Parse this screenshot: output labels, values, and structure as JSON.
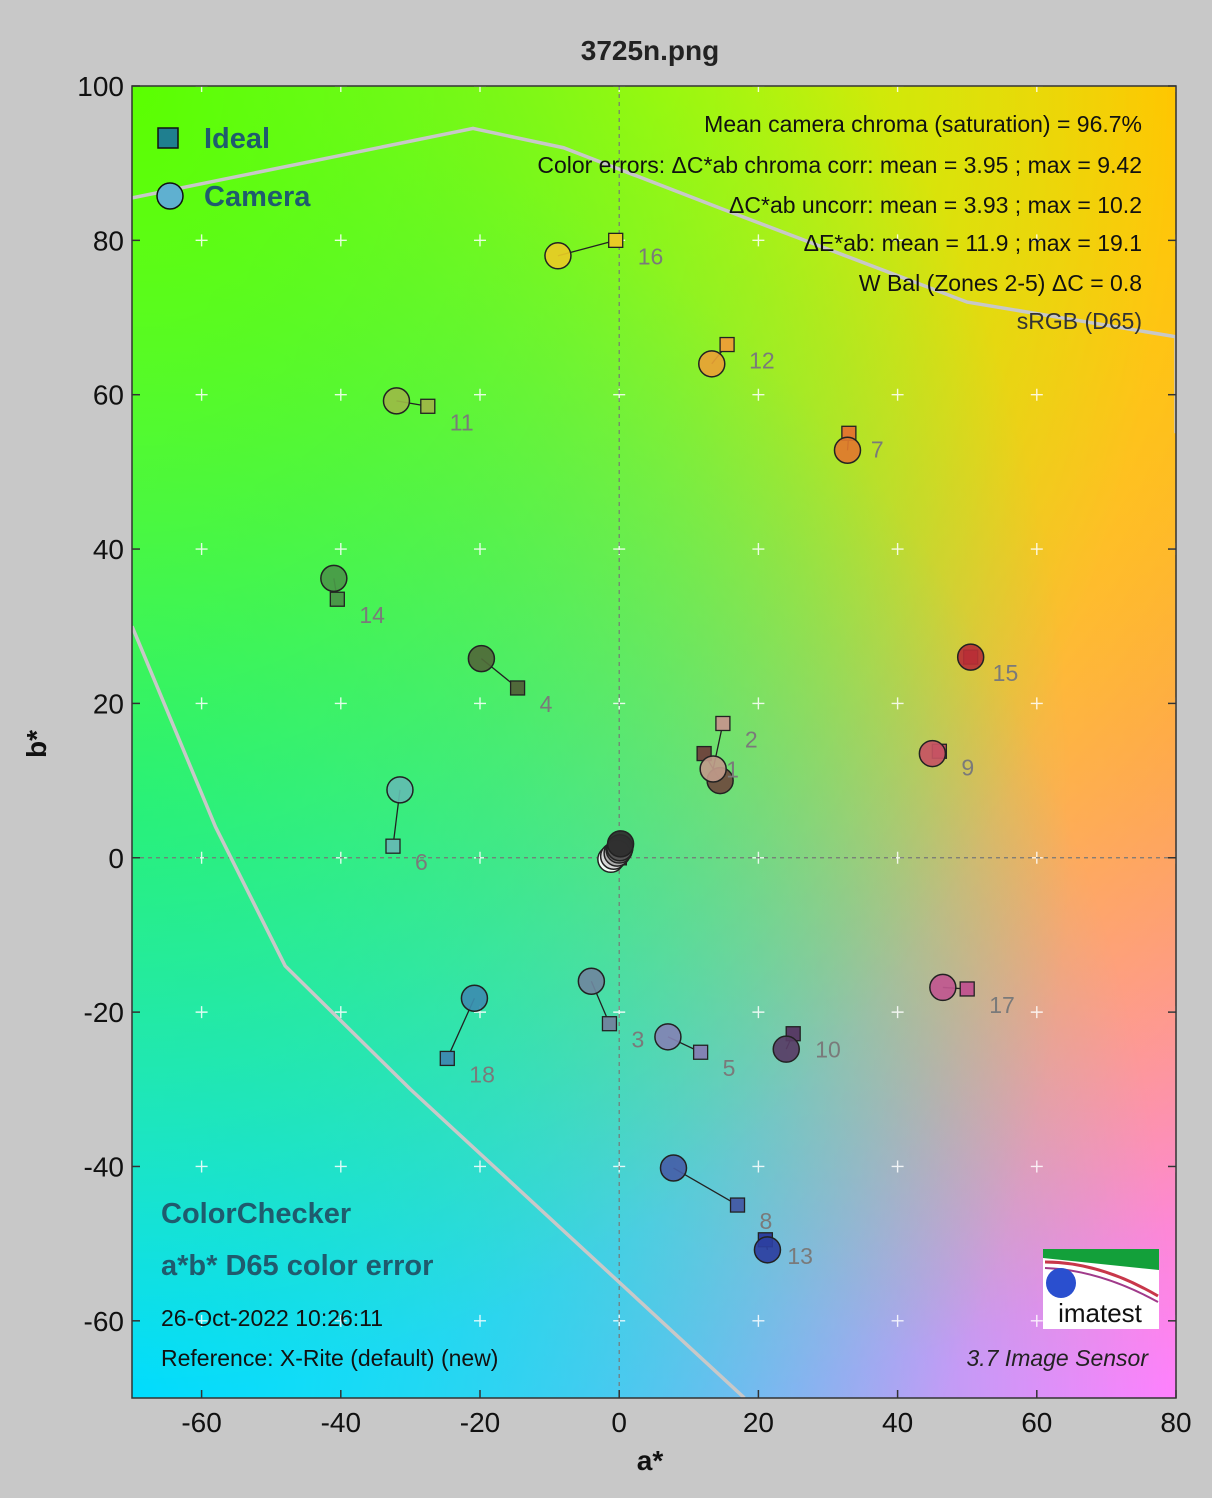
{
  "chart_data": {
    "type": "scatter",
    "title": "3725n.png",
    "xlabel": "a*",
    "ylabel": "b*",
    "xlim": [
      -70,
      80
    ],
    "ylim": [
      -70,
      100
    ],
    "xticks": [
      -60,
      -40,
      -20,
      0,
      20,
      40,
      60,
      80
    ],
    "yticks": [
      -60,
      -40,
      -20,
      0,
      20,
      40,
      60,
      80,
      100
    ],
    "grid": "crosses",
    "legend": {
      "placement": "top-left",
      "entries": [
        {
          "name": "Ideal",
          "marker": "square"
        },
        {
          "name": "Camera",
          "marker": "circle"
        }
      ]
    },
    "stats": [
      "Mean camera chroma (saturation) = 96.7%",
      "Color errors: ΔC*ab chroma corr:  mean = 3.95 ;  max = 9.42",
      "ΔC*ab uncorr:  mean = 3.93 ;  max = 10.2",
      "ΔE*ab:  mean = 11.9 ;  max = 19.1",
      "W Bal (Zones 2-5) ΔC = 0.8",
      "sRGB (D65)"
    ],
    "caption": {
      "line1": "ColorChecker",
      "line2": "a*b* D65 color error",
      "date": "26-Oct-2022 10:26:11",
      "reference": "Reference: X-Rite (default) (new)",
      "version": "3.7  Image Sensor"
    },
    "logo_text": "imatest",
    "gamut_boundary": [
      [
        -70,
        85.5
      ],
      [
        -21,
        94.5
      ],
      [
        -8,
        92
      ],
      [
        15,
        84
      ],
      [
        50,
        72
      ],
      [
        80,
        67.5
      ],
      [
        80,
        55
      ]
    ],
    "gamut_boundary_lower": [
      [
        -70,
        30
      ],
      [
        -58,
        4
      ],
      [
        -48,
        -14
      ],
      [
        -30,
        -30
      ],
      [
        0,
        -55
      ],
      [
        18,
        -70
      ]
    ],
    "patches": [
      {
        "id": "1",
        "ideal": [
          12.2,
          13.5
        ],
        "camera": [
          14.5,
          10.0
        ],
        "color": "#6e4a3e"
      },
      {
        "id": "2",
        "ideal": [
          14.9,
          17.4
        ],
        "camera": [
          13.5,
          11.5
        ],
        "color": "#c09a8a"
      },
      {
        "id": "3",
        "ideal": [
          -1.4,
          -21.5
        ],
        "camera": [
          -4.0,
          -16.0
        ],
        "color": "#6f879e"
      },
      {
        "id": "4",
        "ideal": [
          -14.6,
          22.0
        ],
        "camera": [
          -19.8,
          25.8
        ],
        "color": "#50693a"
      },
      {
        "id": "5",
        "ideal": [
          11.7,
          -25.2
        ],
        "camera": [
          7.0,
          -23.2
        ],
        "color": "#8283b4"
      },
      {
        "id": "6",
        "ideal": [
          -32.5,
          1.5
        ],
        "camera": [
          -31.5,
          8.8
        ],
        "color": "#62bdb0"
      },
      {
        "id": "7",
        "ideal": [
          33.0,
          55.0
        ],
        "camera": [
          32.8,
          52.8
        ],
        "color": "#e0782e"
      },
      {
        "id": "8",
        "ideal": [
          17.0,
          -45.0
        ],
        "camera": [
          7.8,
          -40.2
        ],
        "color": "#4560a8"
      },
      {
        "id": "9",
        "ideal": [
          46.0,
          13.8
        ],
        "camera": [
          45.0,
          13.5
        ],
        "color": "#c65463"
      },
      {
        "id": "10",
        "ideal": [
          25.0,
          -22.8
        ],
        "camera": [
          24.0,
          -24.8
        ],
        "color": "#583d66"
      },
      {
        "id": "11",
        "ideal": [
          -27.5,
          58.5
        ],
        "camera": [
          -32.0,
          59.2
        ],
        "color": "#9abb45"
      },
      {
        "id": "12",
        "ideal": [
          15.5,
          66.5
        ],
        "camera": [
          13.3,
          64.0
        ],
        "color": "#e9a235"
      },
      {
        "id": "13",
        "ideal": [
          21.0,
          -49.5
        ],
        "camera": [
          21.3,
          -50.8
        ],
        "color": "#2c3fa0"
      },
      {
        "id": "14",
        "ideal": [
          -40.5,
          33.5
        ],
        "camera": [
          -41.0,
          36.2
        ],
        "color": "#4a9848"
      },
      {
        "id": "15",
        "ideal": [
          50.5,
          26.0
        ],
        "camera": [
          50.5,
          26.0
        ],
        "color": "#b83036"
      },
      {
        "id": "16",
        "ideal": [
          -0.5,
          80.0
        ],
        "camera": [
          -8.8,
          78.0
        ],
        "color": "#e9cb25"
      },
      {
        "id": "17",
        "ideal": [
          50.0,
          -17.0
        ],
        "camera": [
          46.5,
          -16.8
        ],
        "color": "#c0578f"
      },
      {
        "id": "18",
        "ideal": [
          -24.7,
          -26.0
        ],
        "camera": [
          -20.8,
          -18.2
        ],
        "color": "#3c8db0"
      },
      {
        "id": "19",
        "ideal": [
          0.0,
          0.0
        ],
        "camera": [
          -1.2,
          -0.2
        ],
        "color": "#ffffff"
      },
      {
        "id": "20",
        "ideal": [
          0.0,
          0.0
        ],
        "camera": [
          -0.8,
          0.2
        ],
        "color": "#d2d2d2"
      },
      {
        "id": "21",
        "ideal": [
          0.0,
          0.0
        ],
        "camera": [
          -0.3,
          0.6
        ],
        "color": "#a8a8a8"
      },
      {
        "id": "22",
        "ideal": [
          0.0,
          0.0
        ],
        "camera": [
          0.0,
          1.0
        ],
        "color": "#7a7a7a"
      },
      {
        "id": "23",
        "ideal": [
          0.0,
          0.0
        ],
        "camera": [
          0.1,
          1.3
        ],
        "color": "#525252"
      },
      {
        "id": "24",
        "ideal": [
          0.0,
          0.0
        ],
        "camera": [
          0.2,
          1.8
        ],
        "color": "#2c2c2c"
      }
    ]
  }
}
